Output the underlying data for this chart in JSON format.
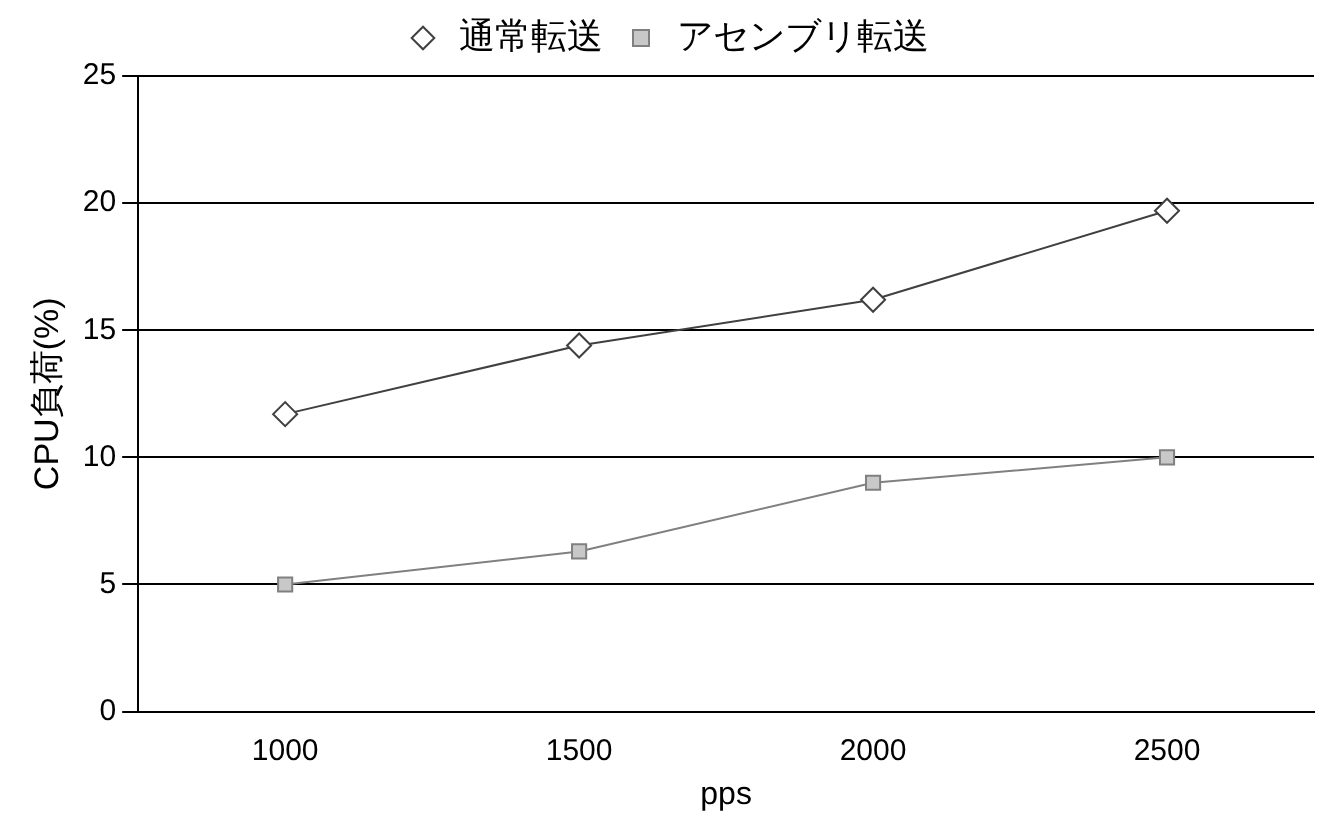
{
  "chart_data": {
    "type": "line",
    "xlabel": "pps",
    "ylabel": "CPU負荷(%)",
    "categories": [
      "1000",
      "1500",
      "2000",
      "2500"
    ],
    "series": [
      {
        "name": "通常転送",
        "color": "#404040",
        "marker": "diamond",
        "values": [
          11.7,
          14.4,
          16.2,
          19.7
        ]
      },
      {
        "name": "アセンブリ転送",
        "color": "#808080",
        "marker": "square",
        "values": [
          5.0,
          6.3,
          9.0,
          10.0
        ]
      }
    ],
    "ylim": [
      0,
      25
    ],
    "yticks": [
      0,
      5,
      10,
      15,
      20,
      25
    ],
    "grid": "y",
    "legend": "top"
  }
}
